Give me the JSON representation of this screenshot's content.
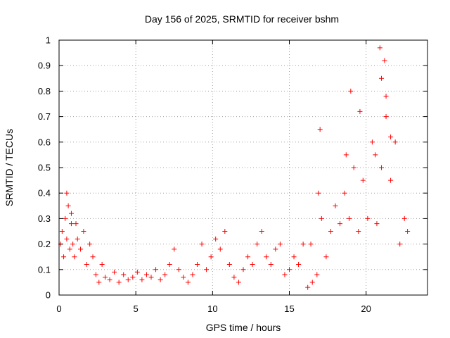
{
  "chart_data": {
    "type": "scatter",
    "title": "Day 156 of 2025, SRMTID for receiver bshm",
    "xlabel": "GPS time / hours",
    "ylabel": "SRMTID / TECUs",
    "xlim": [
      0,
      24
    ],
    "ylim": [
      0,
      1
    ],
    "xticks": [
      0,
      5,
      10,
      15,
      20
    ],
    "xtick_labels": [
      "0",
      "5",
      "10",
      "15",
      "20"
    ],
    "yticks": [
      0,
      0.1,
      0.2,
      0.3,
      0.4,
      0.5,
      0.6,
      0.7,
      0.8,
      0.9,
      1
    ],
    "ytick_labels": [
      "0",
      "0.1",
      "0.2",
      "0.3",
      "0.4",
      "0.5",
      "0.6",
      "0.7",
      "0.8",
      "0.9",
      "1"
    ],
    "grid": true,
    "marker": "+",
    "series": [
      {
        "name": "SRMTID",
        "color": "#ff0000",
        "x": [
          0.1,
          0.2,
          0.3,
          0.4,
          0.5,
          0.6,
          0.7,
          0.8,
          0.9,
          1.0,
          1.2,
          1.4,
          1.6,
          1.8,
          2.0,
          2.2,
          2.4,
          2.6,
          2.8,
          3.0,
          3.3,
          3.6,
          3.9,
          4.2,
          4.5,
          4.8,
          5.1,
          5.4,
          5.7,
          6.0,
          6.3,
          6.6,
          6.9,
          7.2,
          7.5,
          7.8,
          8.1,
          8.4,
          8.7,
          9.0,
          9.3,
          9.6,
          9.9,
          10.2,
          10.5,
          10.8,
          11.1,
          11.4,
          11.7,
          12.0,
          12.3,
          12.6,
          12.9,
          13.2,
          13.5,
          13.8,
          14.1,
          14.4,
          14.7,
          15.0,
          15.3,
          15.6,
          15.9,
          16.2,
          16.5,
          16.8,
          17.1,
          17.4,
          17.7,
          18.0,
          18.3,
          18.6,
          18.9,
          19.2,
          19.5,
          19.8,
          20.1,
          20.4,
          20.7,
          21.0,
          21.3,
          21.6,
          21.9,
          22.2,
          22.5,
          22.7,
          0.5,
          0.8,
          1.1,
          17.0,
          18.7,
          19.0,
          19.6,
          20.6,
          20.9,
          21.0,
          21.2,
          21.3,
          21.6,
          16.4,
          16.9
        ],
        "y": [
          0.2,
          0.25,
          0.15,
          0.3,
          0.22,
          0.35,
          0.18,
          0.28,
          0.2,
          0.15,
          0.22,
          0.18,
          0.25,
          0.12,
          0.2,
          0.15,
          0.08,
          0.05,
          0.12,
          0.07,
          0.06,
          0.09,
          0.05,
          0.08,
          0.06,
          0.07,
          0.09,
          0.06,
          0.08,
          0.07,
          0.1,
          0.06,
          0.08,
          0.12,
          0.18,
          0.1,
          0.07,
          0.05,
          0.08,
          0.12,
          0.2,
          0.1,
          0.15,
          0.22,
          0.18,
          0.25,
          0.12,
          0.07,
          0.05,
          0.1,
          0.15,
          0.12,
          0.2,
          0.25,
          0.15,
          0.12,
          0.18,
          0.2,
          0.08,
          0.1,
          0.15,
          0.12,
          0.2,
          0.03,
          0.05,
          0.08,
          0.3,
          0.15,
          0.25,
          0.35,
          0.28,
          0.4,
          0.3,
          0.5,
          0.25,
          0.45,
          0.3,
          0.6,
          0.28,
          0.5,
          0.7,
          0.45,
          0.6,
          0.2,
          0.3,
          0.25,
          0.4,
          0.32,
          0.28,
          0.65,
          0.55,
          0.8,
          0.72,
          0.55,
          0.97,
          0.85,
          0.92,
          0.78,
          0.62,
          0.2,
          0.4
        ]
      }
    ]
  }
}
